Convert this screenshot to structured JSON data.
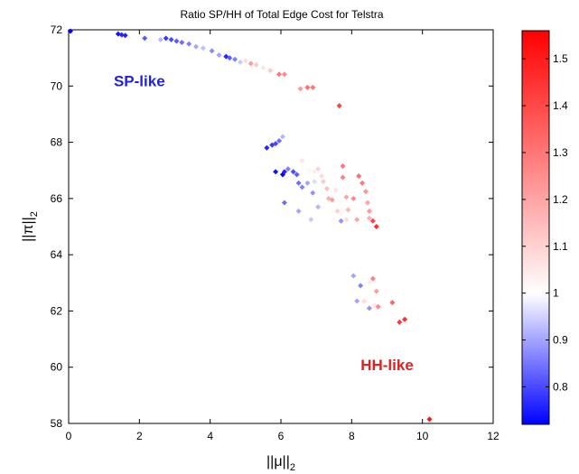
{
  "chart_data": {
    "type": "scatter",
    "title": "Ratio SP/HH of Total Edge Cost for Telstra",
    "xlabel": {
      "main": "||μ||",
      "sub": "2"
    },
    "ylabel": {
      "main": "||π||",
      "sub": "2"
    },
    "xlim": [
      0,
      12
    ],
    "ylim": [
      58,
      72
    ],
    "x_ticks": [
      "0",
      "2",
      "4",
      "6",
      "8",
      "10",
      "12"
    ],
    "y_ticks": [
      "58",
      "60",
      "62",
      "64",
      "66",
      "68",
      "70",
      "72"
    ],
    "grid": false,
    "colorbar": {
      "range": [
        0.72,
        1.56
      ],
      "ticks": [
        "0.8",
        "0.9",
        "1",
        "1.1",
        "1.2",
        "1.3",
        "1.4",
        "1.5"
      ],
      "colormap": [
        "#0000ff",
        "#ffffff",
        "#ff0000"
      ],
      "midpoint": 1.0
    },
    "annotations": [
      {
        "text": "SP-like",
        "x": 2.0,
        "y": 70.0,
        "color": "#2222dd"
      },
      {
        "text": "HH-like",
        "x": 9.0,
        "y": 59.9,
        "color": "#dd2222"
      }
    ],
    "points": [
      [
        0.05,
        71.95,
        0.72
      ],
      [
        1.4,
        71.85,
        0.74
      ],
      [
        1.5,
        71.82,
        0.76
      ],
      [
        1.6,
        71.8,
        0.76
      ],
      [
        2.15,
        71.7,
        0.82
      ],
      [
        2.6,
        71.65,
        0.92
      ],
      [
        2.75,
        71.7,
        0.78
      ],
      [
        2.9,
        71.65,
        0.8
      ],
      [
        3.05,
        71.6,
        0.82
      ],
      [
        3.2,
        71.55,
        0.84
      ],
      [
        3.4,
        71.5,
        0.86
      ],
      [
        3.6,
        71.4,
        0.9
      ],
      [
        3.8,
        71.35,
        0.93
      ],
      [
        4.05,
        71.25,
        0.87
      ],
      [
        4.25,
        71.1,
        0.9
      ],
      [
        4.45,
        71.05,
        0.76
      ],
      [
        4.55,
        71.0,
        0.82
      ],
      [
        4.7,
        70.95,
        0.86
      ],
      [
        4.85,
        70.85,
        0.94
      ],
      [
        5.0,
        70.9,
        1.08
      ],
      [
        5.15,
        70.8,
        1.22
      ],
      [
        5.3,
        70.75,
        1.12
      ],
      [
        5.5,
        70.65,
        1.06
      ],
      [
        5.7,
        70.55,
        1.12
      ],
      [
        5.95,
        70.42,
        1.3
      ],
      [
        6.1,
        70.42,
        1.26
      ],
      [
        6.55,
        69.9,
        1.22
      ],
      [
        6.75,
        69.95,
        1.32
      ],
      [
        6.9,
        69.95,
        1.3
      ],
      [
        7.65,
        69.3,
        1.42
      ],
      [
        5.6,
        67.8,
        0.76
      ],
      [
        5.75,
        67.9,
        0.78
      ],
      [
        5.85,
        67.95,
        0.8
      ],
      [
        5.95,
        68.05,
        0.84
      ],
      [
        6.05,
        68.2,
        0.92
      ],
      [
        5.85,
        66.95,
        0.74
      ],
      [
        6.05,
        66.85,
        0.72
      ],
      [
        6.1,
        66.95,
        0.76
      ],
      [
        6.2,
        67.05,
        0.86
      ],
      [
        6.35,
        66.95,
        0.8
      ],
      [
        6.45,
        66.85,
        0.82
      ],
      [
        6.5,
        66.55,
        0.84
      ],
      [
        6.6,
        66.4,
        0.86
      ],
      [
        6.75,
        66.55,
        0.9
      ],
      [
        6.9,
        66.2,
        0.88
      ],
      [
        6.95,
        66.6,
        0.96
      ],
      [
        6.6,
        67.35,
        1.06
      ],
      [
        6.7,
        67.2,
        1.0
      ],
      [
        6.8,
        67.0,
        1.02
      ],
      [
        6.95,
        66.95,
        1.04
      ],
      [
        7.05,
        67.05,
        1.1
      ],
      [
        7.15,
        66.8,
        1.08
      ],
      [
        7.2,
        66.6,
        1.12
      ],
      [
        7.3,
        66.35,
        1.14
      ],
      [
        7.35,
        66.0,
        1.18
      ],
      [
        7.45,
        65.95,
        1.22
      ],
      [
        7.55,
        66.3,
        1.06
      ],
      [
        7.6,
        65.55,
        1.1
      ],
      [
        7.7,
        65.45,
        1.02
      ],
      [
        7.75,
        67.15,
        1.3
      ],
      [
        7.75,
        66.75,
        1.28
      ],
      [
        7.85,
        66.05,
        1.2
      ],
      [
        7.9,
        65.6,
        1.16
      ],
      [
        8.05,
        66.0,
        1.26
      ],
      [
        8.2,
        66.8,
        1.32
      ],
      [
        8.3,
        66.55,
        1.3
      ],
      [
        8.4,
        66.25,
        1.24
      ],
      [
        8.45,
        65.85,
        1.2
      ],
      [
        8.5,
        65.55,
        1.22
      ],
      [
        6.1,
        65.85,
        0.84
      ],
      [
        6.5,
        65.55,
        0.9
      ],
      [
        7.05,
        65.7,
        0.92
      ],
      [
        6.85,
        65.25,
        0.94
      ],
      [
        7.7,
        65.2,
        0.88
      ],
      [
        7.85,
        65.25,
        1.08
      ],
      [
        8.15,
        65.25,
        1.2
      ],
      [
        8.5,
        65.3,
        1.18
      ],
      [
        8.6,
        65.2,
        1.42
      ],
      [
        8.7,
        65.0,
        1.46
      ],
      [
        8.05,
        63.25,
        0.9
      ],
      [
        8.25,
        62.9,
        0.86
      ],
      [
        8.5,
        63.0,
        1.04
      ],
      [
        8.6,
        63.15,
        1.28
      ],
      [
        8.7,
        62.7,
        1.22
      ],
      [
        8.15,
        62.35,
        0.9
      ],
      [
        8.35,
        62.35,
        1.08
      ],
      [
        8.5,
        62.1,
        0.88
      ],
      [
        8.65,
        62.2,
        1.06
      ],
      [
        8.75,
        62.15,
        1.26
      ],
      [
        9.15,
        62.3,
        1.34
      ],
      [
        9.35,
        61.6,
        1.44
      ],
      [
        9.5,
        61.7,
        1.46
      ],
      [
        10.2,
        58.15,
        1.52
      ]
    ]
  }
}
